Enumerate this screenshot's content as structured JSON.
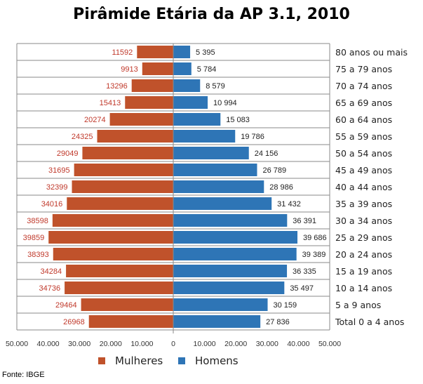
{
  "chart_data": {
    "type": "bar",
    "orientation": "horizontal-population-pyramid",
    "title": "Pirâmide Etária da AP 3.1, 2010",
    "categories": [
      "80 anos ou mais",
      "75 a 79 anos",
      "70 a 74 anos",
      "65 a 69 anos",
      "60 a 64 anos",
      "55 a 59 anos",
      "50 a 54 anos",
      "45 a 49 anos",
      "40 a 44 anos",
      "35 a 39 anos",
      "30 a 34 anos",
      "25 a 29 anos",
      "20 a 24 anos",
      "15 a 19 anos",
      "10 a 14 anos",
      "5 a 9 anos",
      "Total 0 a 4 anos"
    ],
    "series": [
      {
        "name": "Mulheres",
        "color": "#C0522B",
        "label_color": "#C0392B",
        "values": [
          11592,
          9913,
          13296,
          15413,
          20274,
          24325,
          29049,
          31695,
          32399,
          34016,
          38598,
          39859,
          38393,
          34284,
          34736,
          29464,
          26968
        ],
        "labels": [
          "11592",
          "9913",
          "13296",
          "15413",
          "20274",
          "24325",
          "29049",
          "31695",
          "32399",
          "34016",
          "38598",
          "39859",
          "38393",
          "34284",
          "34736",
          "29464",
          "26968"
        ]
      },
      {
        "name": "Homens",
        "color": "#2E75B6",
        "label_color": "#222222",
        "values": [
          5395,
          5784,
          8579,
          10994,
          15083,
          19786,
          24156,
          26789,
          28986,
          31432,
          36391,
          39686,
          39389,
          36335,
          35497,
          30159,
          27836
        ],
        "labels": [
          "5 395",
          "5 784",
          "8 579",
          "10 994",
          "15 083",
          "19 786",
          "24 156",
          "26 789",
          "28 986",
          "31 432",
          "36 391",
          "39 686",
          "39 389",
          "36 335",
          "35 497",
          "30 159",
          "27 836"
        ]
      }
    ],
    "xlim": [
      -50000,
      50000
    ],
    "xticks": [
      -50000,
      -40000,
      -30000,
      -20000,
      -10000,
      0,
      10000,
      20000,
      30000,
      40000,
      50000
    ],
    "xtick_labels": [
      "50.000",
      "40.000",
      "30.000",
      "20.000",
      "10.000",
      "0",
      "10.000",
      "20.000",
      "30.000",
      "40.000",
      "50.000"
    ],
    "legend": [
      "Mulheres",
      "Homens"
    ],
    "grid": true,
    "source": "Fonte: IBGE"
  }
}
